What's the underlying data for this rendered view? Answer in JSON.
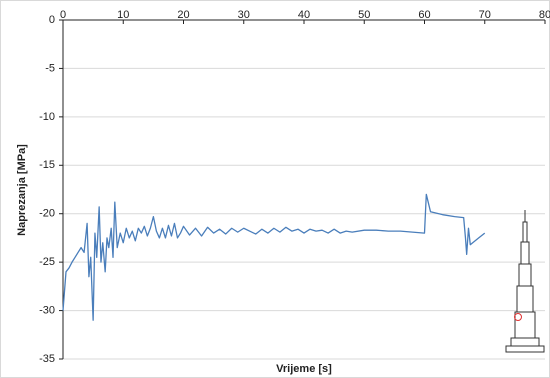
{
  "chart_data": {
    "type": "line",
    "x_label": "Vrijeme [s]",
    "y_label": "Naprezanja [MPa]",
    "x": [
      0,
      0.5,
      1,
      1.5,
      2,
      2.5,
      3,
      3.5,
      4,
      4.3,
      4.6,
      5,
      5.3,
      5.6,
      6,
      6.3,
      6.6,
      7,
      7.3,
      7.6,
      8,
      8.3,
      8.6,
      9,
      9.5,
      10,
      10.5,
      11,
      11.5,
      12,
      12.5,
      13,
      13.5,
      14,
      14.5,
      15,
      15.5,
      16,
      16.5,
      17,
      17.5,
      18,
      18.5,
      19,
      19.5,
      20,
      21,
      22,
      23,
      24,
      25,
      26,
      27,
      28,
      29,
      30,
      31,
      32,
      33,
      34,
      35,
      36,
      37,
      38,
      39,
      40,
      41,
      42,
      43,
      44,
      45,
      46,
      47,
      48,
      50,
      52,
      54,
      56,
      58,
      60,
      60.3,
      61,
      63,
      65,
      66.5,
      66.8,
      67,
      67.3,
      67.6,
      68,
      69,
      70
    ],
    "values": [
      -30,
      -26,
      -25.6,
      -25,
      -24.5,
      -24,
      -23.5,
      -24,
      -21,
      -26.5,
      -24.5,
      -31,
      -22,
      -24.5,
      -19.3,
      -25,
      -23,
      -26,
      -22.5,
      -23.5,
      -21.5,
      -24.5,
      -18.8,
      -23.5,
      -22,
      -23,
      -21.5,
      -22.5,
      -21.8,
      -22.8,
      -21.5,
      -22,
      -21.3,
      -22.3,
      -21.5,
      -20.3,
      -21.8,
      -22.5,
      -21.5,
      -22.5,
      -21.2,
      -22.3,
      -21,
      -22.5,
      -22,
      -21.3,
      -22.2,
      -21.5,
      -22.3,
      -21.4,
      -22,
      -21.6,
      -22.1,
      -21.5,
      -21.9,
      -21.5,
      -21.8,
      -22.1,
      -21.6,
      -22,
      -21.5,
      -21.9,
      -21.4,
      -21.8,
      -21.6,
      -22,
      -21.6,
      -21.8,
      -21.7,
      -22,
      -21.6,
      -22,
      -21.8,
      -21.9,
      -21.7,
      -21.7,
      -21.8,
      -21.8,
      -21.9,
      -22,
      -18,
      -19.8,
      -20.1,
      -20.3,
      -20.4,
      -22.5,
      -24.2,
      -21.5,
      -23.2,
      -23,
      -22.5,
      -22
    ],
    "color": "#4a7ebb",
    "xlim": [
      0,
      80
    ],
    "xticks": [
      0,
      10,
      20,
      30,
      40,
      50,
      60,
      70,
      80
    ],
    "ylim": [
      -35,
      0
    ],
    "yticks": [
      0,
      -5,
      -10,
      -15,
      -20,
      -25,
      -30,
      -35
    ],
    "grid": true,
    "x_axis_position": "top"
  }
}
